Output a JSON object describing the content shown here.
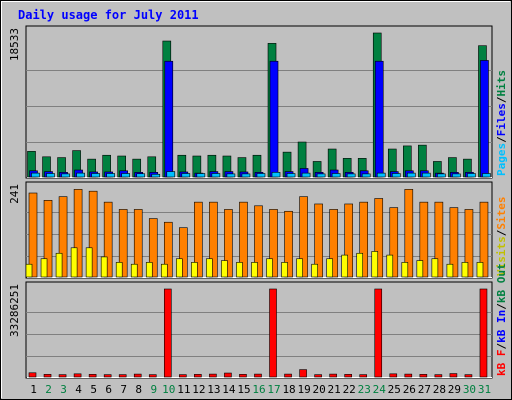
{
  "chart_data": {
    "type": "bar",
    "title": "Daily usage for July 2011",
    "categories": [
      "1",
      "2",
      "3",
      "4",
      "5",
      "6",
      "7",
      "8",
      "9",
      "10",
      "11",
      "12",
      "13",
      "14",
      "15",
      "16",
      "17",
      "18",
      "19",
      "20",
      "21",
      "22",
      "23",
      "24",
      "25",
      "26",
      "27",
      "28",
      "29",
      "30",
      "31"
    ],
    "weekend_categories": [
      "2",
      "3",
      "9",
      "10",
      "16",
      "17",
      "23",
      "24",
      "30",
      "31"
    ],
    "panels": [
      {
        "name": "hits",
        "ymax_label": "18533",
        "ylim": [
          0,
          18533
        ],
        "legend": [
          {
            "text": "Pages",
            "color": "#00c0ff"
          },
          {
            "text": "/",
            "color": "#000000"
          },
          {
            "text": "Files",
            "color": "#0000ff"
          },
          {
            "text": "/",
            "color": "#000000"
          },
          {
            "text": "Hits",
            "color": "#008040"
          }
        ],
        "series": [
          {
            "name": "Hits",
            "color": "#008040",
            "values": [
              3300,
              2600,
              2500,
              3400,
              2300,
              2800,
              2700,
              2300,
              2600,
              17500,
              2800,
              2700,
              2800,
              2700,
              2500,
              2800,
              17200,
              3200,
              4500,
              2000,
              3600,
              2400,
              2400,
              18533,
              3600,
              4000,
              4100,
              2000,
              2500,
              2300,
              16900
            ]
          },
          {
            "name": "Files",
            "color": "#0000ff",
            "values": [
              800,
              700,
              600,
              900,
              650,
              650,
              800,
              600,
              600,
              14900,
              650,
              500,
              700,
              700,
              650,
              600,
              14900,
              700,
              1100,
              600,
              900,
              600,
              800,
              14900,
              700,
              800,
              800,
              500,
              600,
              600,
              15000
            ]
          },
          {
            "name": "Pages",
            "color": "#00c0ff",
            "values": [
              500,
              450,
              400,
              500,
              450,
              450,
              450,
              420,
              350,
              700,
              450,
              450,
              450,
              400,
              400,
              450,
              600,
              450,
              500,
              400,
              450,
              400,
              400,
              500,
              450,
              500,
              500,
              400,
              400,
              450,
              450
            ]
          }
        ]
      },
      {
        "name": "visits",
        "ymax_label": "241",
        "ylim": [
          0,
          241
        ],
        "legend": [
          {
            "text": "Visits",
            "color": "#c0c000"
          },
          {
            "text": "/",
            "color": "#000000"
          },
          {
            "text": "Sites",
            "color": "#ff8000"
          }
        ],
        "series": [
          {
            "name": "Sites",
            "color": "#ff8000",
            "values": [
              230,
              210,
              220,
              240,
              235,
              205,
              185,
              185,
              160,
              150,
              135,
              205,
              205,
              185,
              205,
              195,
              185,
              180,
              220,
              200,
              185,
              200,
              205,
              215,
              190,
              240,
              205,
              205,
              190,
              185,
              205
            ]
          },
          {
            "name": "Visits",
            "color": "#ffff00",
            "values": [
              35,
              50,
              65,
              80,
              80,
              55,
              40,
              35,
              40,
              35,
              50,
              40,
              50,
              45,
              40,
              40,
              50,
              40,
              50,
              35,
              50,
              60,
              65,
              70,
              60,
              40,
              45,
              50,
              35,
              40,
              40
            ]
          }
        ]
      },
      {
        "name": "kbytes",
        "ymax_label": "33286251",
        "ylim": [
          0,
          33286251
        ],
        "legend": [
          {
            "text": "kB F",
            "color": "#ff0000"
          },
          {
            "text": "/",
            "color": "#000000"
          },
          {
            "text": "kB In",
            "color": "#0000ff"
          },
          {
            "text": "/",
            "color": "#000000"
          },
          {
            "text": "kB Out",
            "color": "#008040"
          }
        ],
        "series": [
          {
            "name": "kB F",
            "color": "#ff0000",
            "values": [
              1600000,
              1000000,
              900000,
              1200000,
              1000000,
              900000,
              900000,
              1100000,
              900000,
              33286251,
              900000,
              1000000,
              1100000,
              1500000,
              1000000,
              1100000,
              33286251,
              1100000,
              2800000,
              900000,
              1100000,
              1000000,
              900000,
              33286251,
              1200000,
              1100000,
              1000000,
              900000,
              1300000,
              900000,
              33286251
            ]
          }
        ]
      }
    ]
  }
}
